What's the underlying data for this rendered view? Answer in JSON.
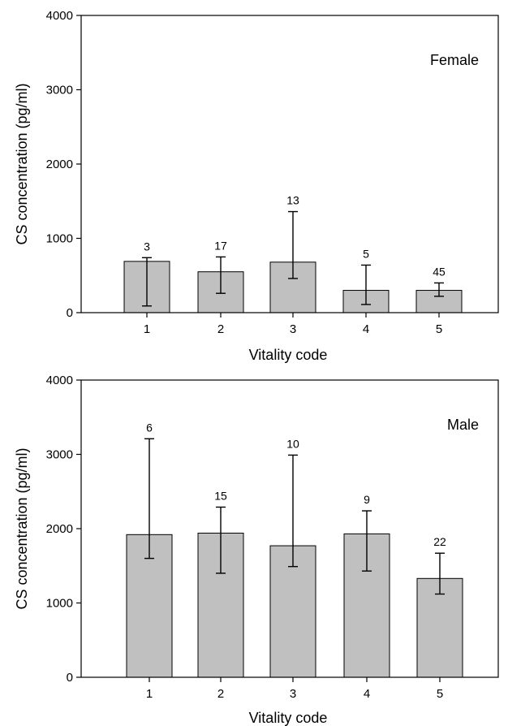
{
  "chart_data": [
    {
      "type": "bar",
      "panel_label": "Female",
      "xlabel": "Vitality code",
      "ylabel": "CS concentration (pg/ml)",
      "ylim": [
        0,
        4000
      ],
      "yticks": [
        0,
        1000,
        2000,
        3000,
        4000
      ],
      "categories": [
        "1",
        "2",
        "3",
        "4",
        "5"
      ],
      "values": [
        690,
        550,
        680,
        300,
        300
      ],
      "error_low": [
        90,
        260,
        460,
        110,
        220
      ],
      "error_high": [
        740,
        750,
        1360,
        640,
        400
      ],
      "n_labels": [
        "3",
        "17",
        "13",
        "5",
        "45"
      ],
      "bar_color": "#c0c0c0",
      "grid": false
    },
    {
      "type": "bar",
      "panel_label": "Male",
      "xlabel": "Vitality code",
      "ylabel": "CS concentration (pg/ml)",
      "ylim": [
        0,
        4000
      ],
      "yticks": [
        0,
        1000,
        2000,
        3000,
        4000
      ],
      "categories": [
        "1",
        "2",
        "3",
        "4",
        "5"
      ],
      "values": [
        1920,
        1940,
        1770,
        1930,
        1330
      ],
      "error_low": [
        1600,
        1400,
        1490,
        1430,
        1120
      ],
      "error_high": [
        3210,
        2290,
        2990,
        2240,
        1670
      ],
      "n_labels": [
        "6",
        "15",
        "10",
        "9",
        "22"
      ],
      "bar_color": "#c0c0c0",
      "grid": false
    }
  ]
}
